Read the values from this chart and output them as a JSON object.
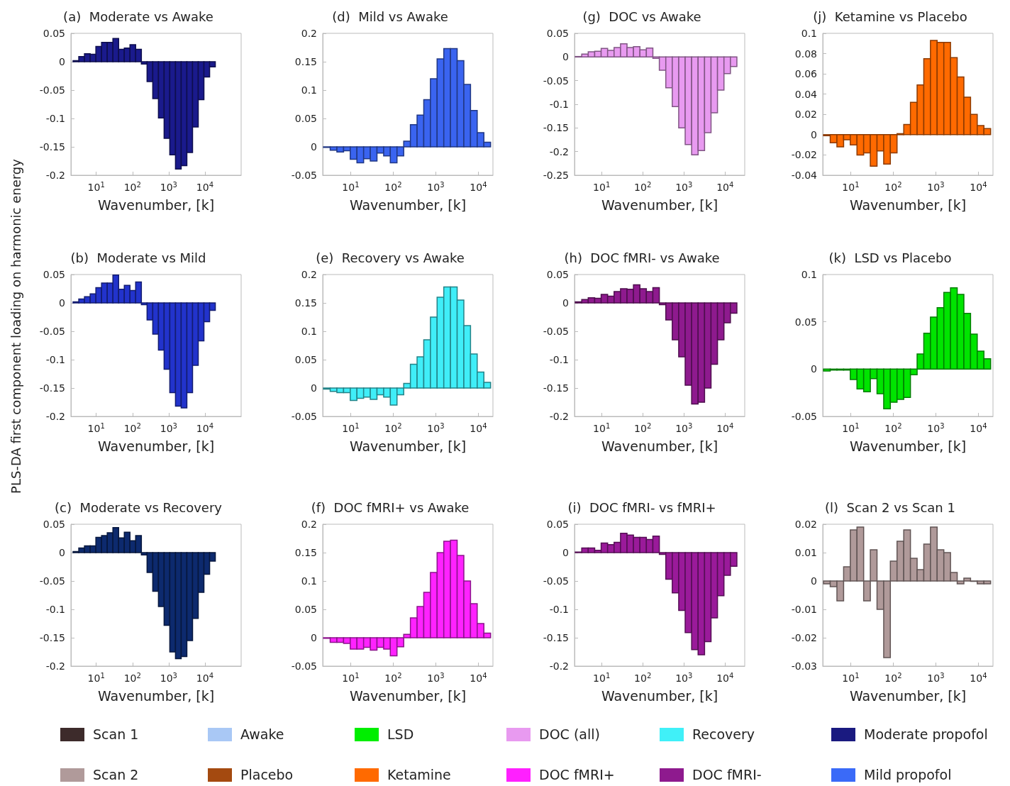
{
  "chart_data": [
    {
      "type": "bar",
      "title": "(a)  Moderate vs Awake",
      "xlabel": "Wavenumber, [k]",
      "log": "x",
      "x": [
        2.75,
        3.95,
        5.68,
        8.15,
        11.7,
        16.8,
        24.1,
        34.6,
        49.7,
        71.3,
        102,
        147,
        211,
        303,
        435,
        624,
        895,
        1285,
        1845,
        2649,
        3802,
        5458,
        7834,
        11246,
        16144
      ],
      "color": "#1a1a8c",
      "values": [
        0.002,
        0.009,
        0.014,
        0.013,
        0.027,
        0.034,
        0.034,
        0.041,
        0.022,
        0.024,
        0.03,
        0.022,
        -0.004,
        -0.035,
        -0.065,
        -0.099,
        -0.135,
        -0.164,
        -0.189,
        -0.183,
        -0.16,
        -0.115,
        -0.067,
        -0.027,
        -0.009
      ],
      "xlim": [
        2,
        100000
      ],
      "xticks": [
        {
          "value": 10,
          "label": "10$^{1}$"
        },
        {
          "value": 100,
          "label": "10$^{2}$"
        },
        {
          "value": 1000,
          "label": "10$^{3}$"
        },
        {
          "value": 10000,
          "label": "10$^{4}$"
        }
      ],
      "ylim": [
        -0.2,
        0.05
      ],
      "yticks": [
        -0.2,
        -0.15,
        -0.1,
        -0.05,
        0,
        0.05
      ],
      "grid": false
    },
    {
      "type": "bar",
      "title": "(b)  Moderate vs Mild",
      "xlabel": "Wavenumber, [k]",
      "ylabel": "PLS-DA first component loading on harmonic energy",
      "log": "x",
      "x": [
        2.75,
        3.95,
        5.68,
        8.15,
        11.7,
        16.8,
        24.1,
        34.6,
        49.7,
        71.3,
        102,
        147,
        211,
        303,
        435,
        624,
        895,
        1285,
        1845,
        2649,
        3802,
        5458,
        7834,
        11246,
        16144
      ],
      "color": "#2233cc",
      "values": [
        0.002,
        0.007,
        0.011,
        0.016,
        0.027,
        0.035,
        0.035,
        0.049,
        0.024,
        0.031,
        0.022,
        0.037,
        -0.003,
        -0.03,
        -0.055,
        -0.083,
        -0.117,
        -0.158,
        -0.182,
        -0.185,
        -0.158,
        -0.11,
        -0.067,
        -0.033,
        -0.013
      ],
      "xlim": [
        2,
        100000
      ],
      "xticks": [
        {
          "value": 10,
          "label": "10$^{1}$"
        },
        {
          "value": 100,
          "label": "10$^{2}$"
        },
        {
          "value": 1000,
          "label": "10$^{3}$"
        },
        {
          "value": 10000,
          "label": "10$^{4}$"
        }
      ],
      "ylim": [
        -0.2,
        0.05
      ],
      "yticks": [
        -0.2,
        -0.15,
        -0.1,
        -0.05,
        0,
        0.05
      ],
      "grid": false
    },
    {
      "type": "bar",
      "title": "(c)  Moderate vs Recovery",
      "xlabel": "Wavenumber, [k]",
      "log": "x",
      "x": [
        2.75,
        3.95,
        5.68,
        8.15,
        11.7,
        16.8,
        24.1,
        34.6,
        49.7,
        71.3,
        102,
        147,
        211,
        303,
        435,
        624,
        895,
        1285,
        1845,
        2649,
        3802,
        5458,
        7834,
        11246,
        16144
      ],
      "color": "#0d2a6e",
      "values": [
        0.002,
        0.008,
        0.012,
        0.012,
        0.027,
        0.03,
        0.035,
        0.044,
        0.026,
        0.036,
        0.021,
        0.03,
        -0.004,
        -0.035,
        -0.068,
        -0.095,
        -0.128,
        -0.175,
        -0.187,
        -0.183,
        -0.155,
        -0.116,
        -0.07,
        -0.038,
        -0.015
      ],
      "xlim": [
        2,
        100000
      ],
      "xticks": [
        {
          "value": 10,
          "label": "10$^{1}$"
        },
        {
          "value": 100,
          "label": "10$^{2}$"
        },
        {
          "value": 1000,
          "label": "10$^{3}$"
        },
        {
          "value": 10000,
          "label": "10$^{4}$"
        }
      ],
      "ylim": [
        -0.2,
        0.05
      ],
      "yticks": [
        -0.2,
        -0.15,
        -0.1,
        -0.05,
        0,
        0.05
      ],
      "grid": false
    },
    {
      "type": "bar",
      "title": "(d)  Mild vs Awake",
      "xlabel": "Wavenumber, [k]",
      "log": "x",
      "x": [
        2.75,
        3.95,
        5.68,
        8.15,
        11.7,
        16.8,
        24.1,
        34.6,
        49.7,
        71.3,
        102,
        147,
        211,
        303,
        435,
        624,
        895,
        1285,
        1845,
        2649,
        3802,
        5458,
        7834,
        11246,
        16144
      ],
      "color": "#3a64f0",
      "values": [
        -0.001,
        -0.006,
        -0.009,
        -0.007,
        -0.022,
        -0.028,
        -0.021,
        -0.025,
        -0.011,
        -0.016,
        -0.028,
        -0.016,
        0.01,
        0.039,
        0.056,
        0.083,
        0.12,
        0.155,
        0.173,
        0.173,
        0.152,
        0.11,
        0.064,
        0.025,
        0.008
      ],
      "xlim": [
        2.2,
        22000
      ],
      "xticks": [
        {
          "value": 10,
          "label": "10$^{1}$"
        },
        {
          "value": 100,
          "label": "10$^{2}$"
        },
        {
          "value": 1000,
          "label": "10$^{3}$"
        },
        {
          "value": 10000,
          "label": "10$^{4}$"
        }
      ],
      "ylim": [
        -0.05,
        0.2
      ],
      "yticks": [
        -0.05,
        0,
        0.05,
        0.1,
        0.15,
        0.2
      ],
      "grid": false
    },
    {
      "type": "bar",
      "title": "(e)  Recovery vs Awake",
      "xlabel": "Wavenumber, [k]",
      "log": "x",
      "x": [
        2.75,
        3.95,
        5.68,
        8.15,
        11.7,
        16.8,
        24.1,
        34.6,
        49.7,
        71.3,
        102,
        147,
        211,
        303,
        435,
        624,
        895,
        1285,
        1845,
        2649,
        3802,
        5458,
        7834,
        11246,
        16144
      ],
      "color": "#40eef8",
      "values": [
        -0.002,
        -0.006,
        -0.008,
        -0.008,
        -0.022,
        -0.018,
        -0.016,
        -0.02,
        -0.012,
        -0.016,
        -0.03,
        -0.012,
        0.008,
        0.042,
        0.055,
        0.085,
        0.125,
        0.16,
        0.178,
        0.178,
        0.155,
        0.11,
        0.06,
        0.028,
        0.01
      ],
      "xlim": [
        2.2,
        22000
      ],
      "xticks": [
        {
          "value": 10,
          "label": "10$^{1}$"
        },
        {
          "value": 100,
          "label": "10$^{2}$"
        },
        {
          "value": 1000,
          "label": "10$^{3}$"
        },
        {
          "value": 10000,
          "label": "10$^{4}$"
        }
      ],
      "ylim": [
        -0.05,
        0.2
      ],
      "yticks": [
        -0.05,
        0,
        0.05,
        0.1,
        0.15,
        0.2
      ],
      "grid": false
    },
    {
      "type": "bar",
      "title": "(f)  DOC fMRI+ vs Awake",
      "xlabel": "Wavenumber, [k]",
      "log": "x",
      "x": [
        2.75,
        3.95,
        5.68,
        8.15,
        11.7,
        16.8,
        24.1,
        34.6,
        49.7,
        71.3,
        102,
        147,
        211,
        303,
        435,
        624,
        895,
        1285,
        1845,
        2649,
        3802,
        5458,
        7834,
        11246,
        16144
      ],
      "color": "#ff22ff",
      "values": [
        -0.001,
        -0.008,
        -0.008,
        -0.01,
        -0.02,
        -0.02,
        -0.017,
        -0.022,
        -0.017,
        -0.02,
        -0.032,
        -0.016,
        0.006,
        0.035,
        0.055,
        0.08,
        0.115,
        0.15,
        0.17,
        0.172,
        0.145,
        0.1,
        0.06,
        0.025,
        0.008
      ],
      "xlim": [
        2.2,
        22000
      ],
      "xticks": [
        {
          "value": 10,
          "label": "10$^{1}$"
        },
        {
          "value": 100,
          "label": "10$^{2}$"
        },
        {
          "value": 1000,
          "label": "10$^{3}$"
        },
        {
          "value": 10000,
          "label": "10$^{4}$"
        }
      ],
      "ylim": [
        -0.05,
        0.2
      ],
      "yticks": [
        -0.05,
        0,
        0.05,
        0.1,
        0.15,
        0.2
      ],
      "grid": false
    },
    {
      "type": "bar",
      "title": "(g)  DOC vs Awake",
      "xlabel": "Wavenumber, [k]",
      "log": "x",
      "x": [
        2.75,
        3.95,
        5.68,
        8.15,
        11.7,
        16.8,
        24.1,
        34.6,
        49.7,
        71.3,
        102,
        147,
        211,
        303,
        435,
        624,
        895,
        1285,
        1845,
        2649,
        3802,
        5458,
        7834,
        11246,
        16144
      ],
      "color": "#e89af0",
      "values": [
        0.001,
        0.006,
        0.011,
        0.012,
        0.018,
        0.014,
        0.02,
        0.028,
        0.02,
        0.022,
        0.015,
        0.019,
        -0.003,
        -0.028,
        -0.065,
        -0.105,
        -0.15,
        -0.185,
        -0.207,
        -0.198,
        -0.16,
        -0.118,
        -0.07,
        -0.035,
        -0.02
      ],
      "xlim": [
        2.2,
        30000
      ],
      "xticks": [
        {
          "value": 10,
          "label": "10$^{1}$"
        },
        {
          "value": 100,
          "label": "10$^{2}$"
        },
        {
          "value": 1000,
          "label": "10$^{3}$"
        },
        {
          "value": 10000,
          "label": "10$^{4}$"
        }
      ],
      "ylim": [
        -0.25,
        0.05
      ],
      "yticks": [
        -0.25,
        -0.2,
        -0.15,
        -0.1,
        -0.05,
        0,
        0.05
      ],
      "grid": false
    },
    {
      "type": "bar",
      "title": "(h)  DOC fMRI- vs Awake",
      "xlabel": "Wavenumber, [k]",
      "log": "x",
      "x": [
        2.75,
        3.95,
        5.68,
        8.15,
        11.7,
        16.8,
        24.1,
        34.6,
        49.7,
        71.3,
        102,
        147,
        211,
        303,
        435,
        624,
        895,
        1285,
        1845,
        2649,
        3802,
        5458,
        7834,
        11246,
        16144
      ],
      "color": "#8e1a8e",
      "values": [
        0.002,
        0.006,
        0.009,
        0.008,
        0.015,
        0.012,
        0.02,
        0.025,
        0.024,
        0.032,
        0.025,
        0.02,
        0.027,
        -0.003,
        -0.03,
        -0.065,
        -0.095,
        -0.145,
        -0.178,
        -0.175,
        -0.15,
        -0.108,
        -0.065,
        -0.035,
        -0.018
      ],
      "xlim": [
        2.2,
        30000
      ],
      "xticks": [
        {
          "value": 10,
          "label": "10$^{1}$"
        },
        {
          "value": 100,
          "label": "10$^{2}$"
        },
        {
          "value": 1000,
          "label": "10$^{3}$"
        },
        {
          "value": 10000,
          "label": "10$^{4}$"
        }
      ],
      "ylim": [
        -0.2,
        0.05
      ],
      "yticks": [
        -0.2,
        -0.15,
        -0.1,
        -0.05,
        0,
        0.05
      ],
      "grid": false
    },
    {
      "type": "bar",
      "title": "(i)  DOC fMRI- vs fMRI+",
      "xlabel": "Wavenumber, [k]",
      "log": "x",
      "x": [
        2.75,
        3.95,
        5.68,
        8.15,
        11.7,
        16.8,
        24.1,
        34.6,
        49.7,
        71.3,
        102,
        147,
        211,
        303,
        435,
        624,
        895,
        1285,
        1845,
        2649,
        3802,
        5458,
        7834,
        11246,
        16144
      ],
      "color": "#9a1a9a",
      "values": [
        0.001,
        0.008,
        0.008,
        0.004,
        0.017,
        0.014,
        0.018,
        0.034,
        0.031,
        0.027,
        0.027,
        0.023,
        0.029,
        -0.003,
        -0.047,
        -0.071,
        -0.102,
        -0.141,
        -0.171,
        -0.18,
        -0.157,
        -0.115,
        -0.076,
        -0.04,
        -0.024
      ],
      "xlim": [
        2.2,
        30000
      ],
      "xticks": [
        {
          "value": 10,
          "label": "10$^{1}$"
        },
        {
          "value": 100,
          "label": "10$^{2}$"
        },
        {
          "value": 1000,
          "label": "10$^{3}$"
        },
        {
          "value": 10000,
          "label": "10$^{4}$"
        }
      ],
      "ylim": [
        -0.2,
        0.05
      ],
      "yticks": [
        -0.2,
        -0.15,
        -0.1,
        -0.05,
        0,
        0.05
      ],
      "grid": false
    },
    {
      "type": "bar",
      "title": "(j)  Ketamine vs Placebo",
      "xlabel": "Wavenumber, [k]",
      "log": "x",
      "x": [
        2.75,
        3.95,
        5.68,
        8.15,
        11.7,
        16.8,
        24.1,
        34.6,
        49.7,
        71.3,
        102,
        147,
        211,
        303,
        435,
        624,
        895,
        1285,
        1845,
        2649,
        3802,
        5458,
        7834,
        11246,
        16144
      ],
      "color": "#ff6a00",
      "values": [
        -0.001,
        -0.008,
        -0.012,
        -0.005,
        -0.01,
        -0.02,
        -0.018,
        -0.031,
        -0.016,
        -0.029,
        -0.018,
        0.001,
        0.01,
        0.032,
        0.049,
        0.075,
        0.093,
        0.091,
        0.091,
        0.076,
        0.057,
        0.037,
        0.02,
        0.009,
        0.006
      ],
      "xlim": [
        2.2,
        22000
      ],
      "xticks": [
        {
          "value": 10,
          "label": "10$^{1}$"
        },
        {
          "value": 100,
          "label": "10$^{2}$"
        },
        {
          "value": 1000,
          "label": "10$^{3}$"
        },
        {
          "value": 10000,
          "label": "10$^{4}$"
        }
      ],
      "ylim": [
        -0.04,
        0.1
      ],
      "yticks": [
        -0.04,
        -0.02,
        0,
        0.02,
        0.04,
        0.06,
        0.08,
        0.1
      ],
      "grid": false
    },
    {
      "type": "bar",
      "title": "(k)  LSD vs Placebo",
      "xlabel": "Wavenumber, [k]",
      "log": "x",
      "x": [
        2.75,
        3.95,
        5.68,
        8.15,
        11.7,
        16.8,
        24.1,
        34.6,
        49.7,
        71.3,
        102,
        147,
        211,
        303,
        435,
        624,
        895,
        1285,
        1845,
        2649,
        3802,
        5458,
        7834,
        11246,
        16144
      ],
      "color": "#00e400",
      "values": [
        -0.002,
        -0.001,
        -0.001,
        -0.001,
        -0.011,
        -0.021,
        -0.024,
        -0.01,
        -0.026,
        -0.042,
        -0.035,
        -0.032,
        -0.03,
        -0.006,
        0.016,
        0.038,
        0.055,
        0.065,
        0.081,
        0.086,
        0.079,
        0.059,
        0.037,
        0.019,
        0.011
      ],
      "xlim": [
        2.2,
        22000
      ],
      "xticks": [
        {
          "value": 10,
          "label": "10$^{1}$"
        },
        {
          "value": 100,
          "label": "10$^{2}$"
        },
        {
          "value": 1000,
          "label": "10$^{3}$"
        },
        {
          "value": 10000,
          "label": "10$^{4}$"
        }
      ],
      "ylim": [
        -0.05,
        0.1
      ],
      "yticks": [
        -0.05,
        0,
        0.05,
        0.1
      ],
      "grid": false
    },
    {
      "type": "bar",
      "title": "(l)  Scan 2 vs Scan 1",
      "xlabel": "Wavenumber, [k]",
      "log": "x",
      "x": [
        2.75,
        3.95,
        5.68,
        8.15,
        11.7,
        16.8,
        24.1,
        34.6,
        49.7,
        71.3,
        102,
        147,
        211,
        303,
        435,
        624,
        895,
        1285,
        1845,
        2649,
        3802,
        5458,
        7834,
        11246,
        16144
      ],
      "color": "#b09a9a",
      "values": [
        -0.001,
        -0.002,
        -0.007,
        0.005,
        0.018,
        0.019,
        -0.007,
        0.011,
        -0.01,
        -0.027,
        0.007,
        0.014,
        0.018,
        0.008,
        0.004,
        0.013,
        0.019,
        0.011,
        0.01,
        0.003,
        -0.001,
        0.001,
        0.0,
        -0.001,
        -0.001
      ],
      "xlim": [
        2.2,
        22000
      ],
      "xticks": [
        {
          "value": 10,
          "label": "10$^{1}$"
        },
        {
          "value": 100,
          "label": "10$^{2}$"
        },
        {
          "value": 1000,
          "label": "10$^{3}$"
        },
        {
          "value": 10000,
          "label": "10$^{4}$"
        }
      ],
      "ylim": [
        -0.03,
        0.02
      ],
      "yticks": [
        -0.03,
        -0.02,
        -0.01,
        0,
        0.01,
        0.02
      ],
      "grid": false
    },
    {
      "type": "other",
      "categories": [
        "Scan 1",
        "Awake",
        "LSD",
        "DOC (all)",
        "Recovery",
        "Moderate propofol",
        "Scan 2",
        "Placebo",
        "Ketamine",
        "DOC fMRI+",
        "DOC fMRI-",
        "Mild propofol"
      ],
      "colors": [
        "#3d2b2b",
        "#a9c8f5",
        "#00ee00",
        "#e89af0",
        "#40f0f8",
        "#1a1a80",
        "#b09a9a",
        "#a44a10",
        "#ff6a00",
        "#ff20ff",
        "#8e1a8e",
        "#3a6af8"
      ]
    }
  ]
}
